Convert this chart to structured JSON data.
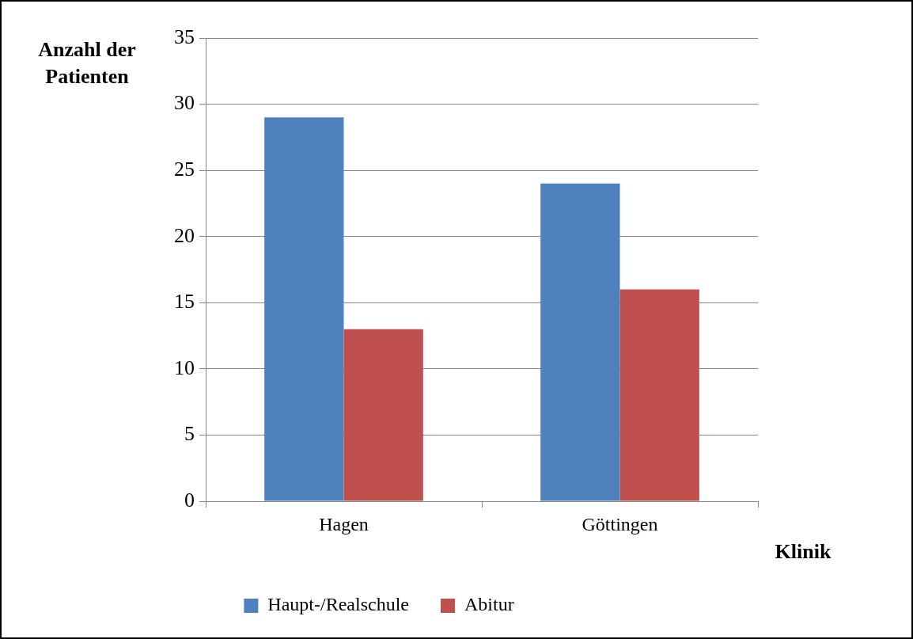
{
  "chart_data": {
    "type": "bar",
    "xlabel": "Klinik",
    "ylabel": "Anzahl der Patienten",
    "categories": [
      "Hagen",
      "Göttingen"
    ],
    "series": [
      {
        "name": "Haupt-/Realschule",
        "color": "#4f81bd",
        "values": [
          29,
          24
        ]
      },
      {
        "name": "Abitur",
        "color": "#c0504d",
        "values": [
          13,
          16
        ]
      }
    ],
    "ylim": [
      0,
      35
    ],
    "yticks": [
      0,
      5,
      10,
      15,
      20,
      25,
      30,
      35
    ],
    "grid": "y",
    "legend": "bottom"
  }
}
